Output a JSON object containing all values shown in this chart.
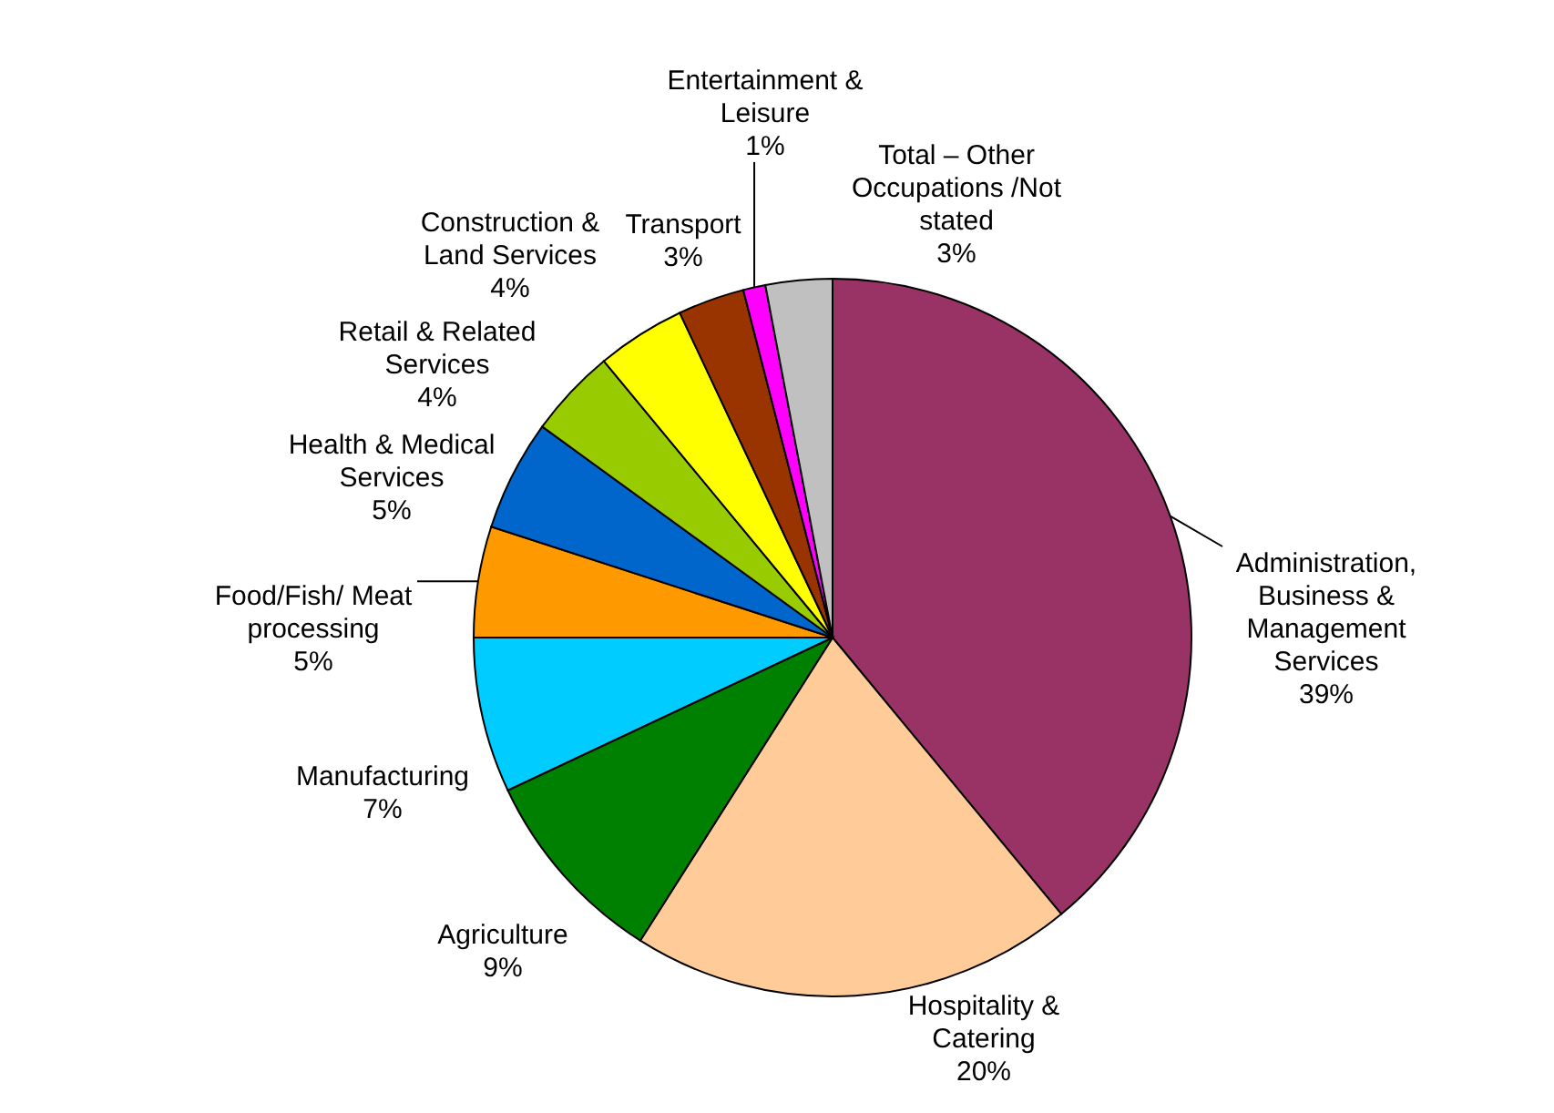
{
  "chart_data": {
    "type": "pie",
    "categories": [
      "Administration, Business & Management Services",
      "Hospitality & Catering",
      "Agriculture",
      "Manufacturing",
      "Food/Fish/ Meat processing",
      "Health & Medical Services",
      "Retail & Related Services",
      "Construction & Land Services",
      "Transport",
      "Entertainment & Leisure",
      "Total – Other Occupations /Not stated"
    ],
    "values": [
      39,
      20,
      9,
      7,
      5,
      5,
      4,
      4,
      3,
      1,
      3
    ],
    "colors": [
      "#993366",
      "#ffcc99",
      "#008000",
      "#00ccff",
      "#ff9900",
      "#0066cc",
      "#99cc00",
      "#ffff00",
      "#993300",
      "#ff00ff",
      "#c0c0c0"
    ],
    "value_labels": [
      "39%",
      "20%",
      "9%",
      "7%",
      "5%",
      "5%",
      "4%",
      "4%",
      "3%",
      "1%",
      "3%"
    ]
  }
}
